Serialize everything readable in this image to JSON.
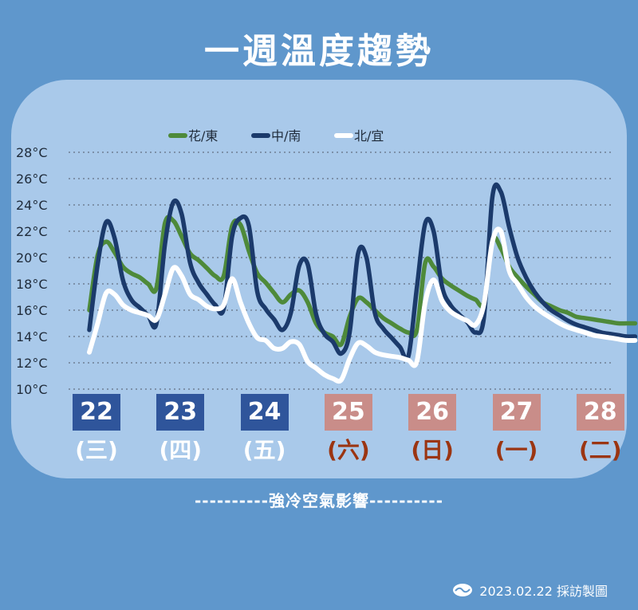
{
  "title": "一週溫度趨勢",
  "note": "----------強冷空氣影響----------",
  "credit": "2023.02.22 採訪製圖",
  "colors": {
    "east": "#4e8a3a",
    "south": "#1b3a6b",
    "north": "#ffffff",
    "weekday": "#2f559b",
    "weekend": "#c98d89",
    "weekend_text": "#9b3512"
  },
  "chart_data": {
    "type": "line",
    "ylim": [
      10,
      28
    ],
    "yticks": [
      "10°C",
      "12°C",
      "14°C",
      "16°C",
      "18°C",
      "20°C",
      "22°C",
      "24°C",
      "26°C",
      "28°C"
    ],
    "legend_position": "top",
    "grid": true,
    "days": [
      {
        "date": "22",
        "weekday": "(三)",
        "weekend": false
      },
      {
        "date": "23",
        "weekday": "(四)",
        "weekend": false
      },
      {
        "date": "24",
        "weekday": "(五)",
        "weekend": false
      },
      {
        "date": "25",
        "weekday": "(六)",
        "weekend": true
      },
      {
        "date": "26",
        "weekday": "(日)",
        "weekend": true
      },
      {
        "date": "27",
        "weekday": "(一)",
        "weekend": true
      },
      {
        "date": "28",
        "weekday": "(二)",
        "weekend": true
      }
    ],
    "x": [
      0,
      0.1,
      0.2,
      0.3,
      0.4,
      0.5,
      0.6,
      0.7,
      0.8,
      0.9,
      1,
      1.1,
      1.2,
      1.3,
      1.4,
      1.5,
      1.6,
      1.7,
      1.8,
      1.9,
      2,
      2.1,
      2.2,
      2.3,
      2.4,
      2.5,
      2.6,
      2.7,
      2.8,
      2.9,
      3,
      3.1,
      3.2,
      3.3,
      3.4,
      3.5,
      3.6,
      3.7,
      3.8,
      3.9,
      4,
      4.1,
      4.2,
      4.3,
      4.4,
      4.5,
      4.6,
      4.7,
      4.8,
      4.9,
      5,
      5.1,
      5.2,
      5.3,
      5.4,
      5.5,
      5.6,
      5.7,
      5.8,
      5.9,
      6,
      6.1,
      6.2,
      6.3,
      6.4,
      6.5
    ],
    "series": [
      {
        "name": "花/東",
        "key": "east",
        "values": [
          16.0,
          20.2,
          21.2,
          20.4,
          19.3,
          18.8,
          18.5,
          18.0,
          17.7,
          22.6,
          22.8,
          21.6,
          20.3,
          19.8,
          19.2,
          18.6,
          18.6,
          22.4,
          22.5,
          20.5,
          18.8,
          18.1,
          17.3,
          16.6,
          17.2,
          17.5,
          16.6,
          15.0,
          14.3,
          14.0,
          13.4,
          15.5,
          16.9,
          16.6,
          16.0,
          15.4,
          15.0,
          14.6,
          14.3,
          14.5,
          19.6,
          19.3,
          18.4,
          17.9,
          17.5,
          17.1,
          16.8,
          16.6,
          21.3,
          20.7,
          19.3,
          18.5,
          17.8,
          17.2,
          16.6,
          16.3,
          16.0,
          15.8,
          15.5,
          15.4,
          15.3,
          15.2,
          15.1,
          15.0,
          15.0,
          15.0
        ]
      },
      {
        "name": "中/南",
        "key": "south",
        "values": [
          14.5,
          19.5,
          22.7,
          21.5,
          18.3,
          16.8,
          16.2,
          15.6,
          15.0,
          21.0,
          24.2,
          23.3,
          19.6,
          18.1,
          17.2,
          16.4,
          16.1,
          21.6,
          23.0,
          22.4,
          17.4,
          16.1,
          15.3,
          14.5,
          15.8,
          19.4,
          19.5,
          15.7,
          14.2,
          13.6,
          12.7,
          14.3,
          20.3,
          20.0,
          15.8,
          14.6,
          13.9,
          13.2,
          12.5,
          17.7,
          22.6,
          22.0,
          17.8,
          16.4,
          15.7,
          15.1,
          14.3,
          15.5,
          24.6,
          25.0,
          22.3,
          20.0,
          18.5,
          17.4,
          16.6,
          16.0,
          15.6,
          15.2,
          14.9,
          14.7,
          14.5,
          14.3,
          14.2,
          14.1,
          14.0,
          14.0
        ]
      },
      {
        "name": "北/宜",
        "key": "north",
        "values": [
          12.8,
          15.0,
          17.3,
          17.2,
          16.4,
          16.0,
          15.8,
          15.6,
          15.3,
          17.2,
          19.2,
          18.6,
          17.2,
          16.8,
          16.3,
          16.1,
          16.4,
          18.4,
          16.6,
          15.0,
          13.9,
          13.7,
          13.1,
          13.1,
          13.6,
          13.4,
          12.1,
          11.6,
          11.1,
          10.8,
          10.7,
          12.3,
          13.5,
          13.3,
          12.8,
          12.6,
          12.5,
          12.4,
          12.2,
          12.1,
          16.6,
          18.3,
          16.7,
          15.9,
          15.5,
          15.2,
          14.9,
          16.5,
          21.2,
          22.0,
          19.0,
          18.0,
          17.0,
          16.3,
          15.8,
          15.4,
          15.0,
          14.7,
          14.5,
          14.3,
          14.1,
          14.0,
          13.9,
          13.8,
          13.7,
          13.7
        ]
      }
    ]
  }
}
